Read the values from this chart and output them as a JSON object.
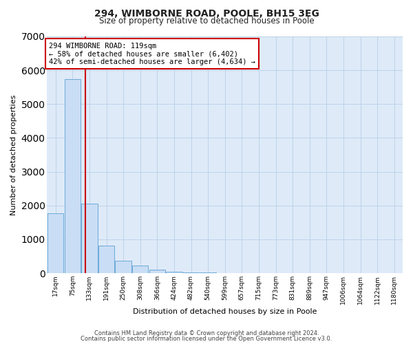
{
  "title": "294, WIMBORNE ROAD, POOLE, BH15 3EG",
  "subtitle": "Size of property relative to detached houses in Poole",
  "xlabel": "Distribution of detached houses by size in Poole",
  "ylabel": "Number of detached properties",
  "bin_labels": [
    "17sqm",
    "75sqm",
    "133sqm",
    "191sqm",
    "250sqm",
    "308sqm",
    "366sqm",
    "424sqm",
    "482sqm",
    "540sqm",
    "599sqm",
    "657sqm",
    "715sqm",
    "773sqm",
    "831sqm",
    "889sqm",
    "947sqm",
    "1006sqm",
    "1064sqm",
    "1122sqm",
    "1180sqm"
  ],
  "bar_heights": [
    1780,
    5740,
    2050,
    820,
    360,
    220,
    100,
    50,
    30,
    15,
    10,
    0,
    0,
    0,
    0,
    0,
    0,
    0,
    0,
    0,
    0
  ],
  "bar_color": "#c9ddf5",
  "bar_edge_color": "#6baad8",
  "red_line_x": 1.76,
  "annotation_box_color": "#ffffff",
  "annotation_box_edge": "#cc0000",
  "ylim": [
    0,
    7000
  ],
  "yticks": [
    0,
    1000,
    2000,
    3000,
    4000,
    5000,
    6000,
    7000
  ],
  "footer_line1": "Contains HM Land Registry data © Crown copyright and database right 2024.",
  "footer_line2": "Contains public sector information licensed under the Open Government Licence v3.0.",
  "fig_background_color": "#ffffff",
  "plot_background": "#deeaf8",
  "grid_color": "#b8cfe8",
  "annotation_line1": "294 WIMBORNE ROAD: 119sqm",
  "annotation_line2": "← 58% of detached houses are smaller (6,402)",
  "annotation_line3": "42% of semi-detached houses are larger (4,634) →"
}
